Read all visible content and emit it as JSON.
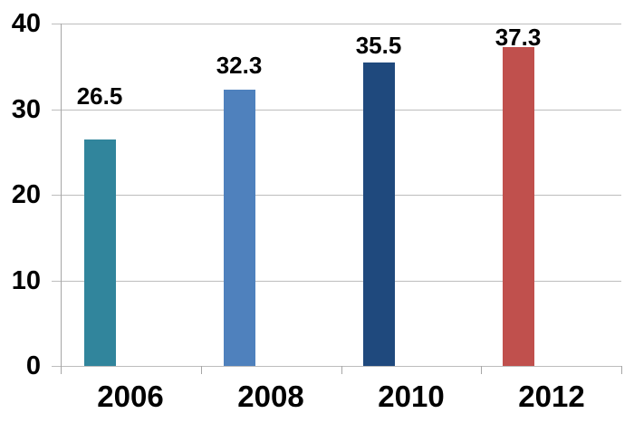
{
  "chart_data": {
    "type": "bar",
    "title": "",
    "xlabel": "",
    "ylabel": "",
    "categories": [
      "2006",
      "2008",
      "2010",
      "2012"
    ],
    "values": [
      26.5,
      32.3,
      35.5,
      37.3
    ],
    "data_labels": [
      "26.5",
      "32.3",
      "35.5",
      "37.3"
    ],
    "ylim": [
      0,
      40
    ],
    "yticks": [
      0,
      10,
      20,
      30,
      40
    ],
    "ytick_labels": [
      "0",
      "10",
      "20",
      "30",
      "40"
    ],
    "grid": true,
    "legend": false,
    "bar_colors": [
      "#31859C",
      "#4F81BD",
      "#1F497D",
      "#C0504D"
    ],
    "gridline_color": "#BDBDBD",
    "axis_color": "#A6A6A6",
    "text_color": "#000000",
    "background": "#FFFFFF"
  }
}
